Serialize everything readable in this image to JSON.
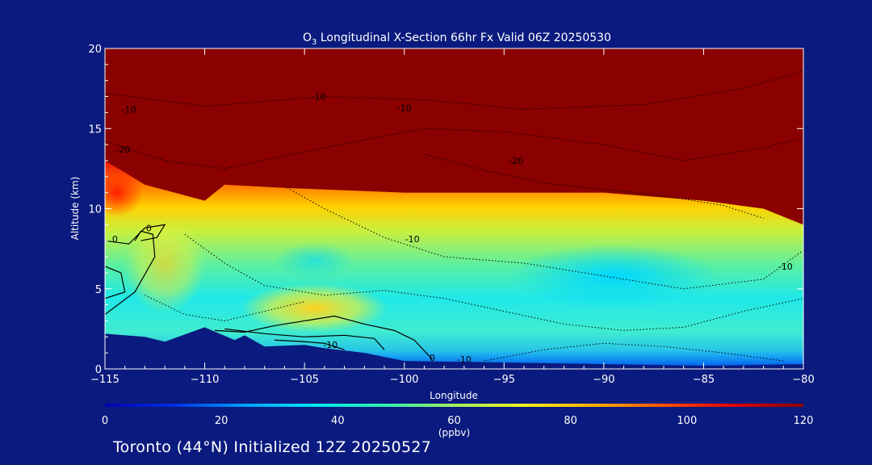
{
  "chart_data": {
    "type": "heatmap",
    "title_prefix": "O",
    "title_sub": "3",
    "title_rest": " Longitudinal X-Section 66hr  Fx Valid 06Z 20250530",
    "xlabel": "Longitude",
    "ylabel": "Altitude (km)",
    "xlim": [
      -115,
      -80
    ],
    "ylim": [
      0,
      20
    ],
    "x_ticks": [
      -115,
      -110,
      -105,
      -100,
      -95,
      -90,
      -85,
      -80
    ],
    "x_tick_labels": [
      "−115",
      "−110",
      "−105",
      "−100",
      "−95",
      "−90",
      "−85",
      "−80"
    ],
    "y_ticks": [
      0,
      5,
      10,
      15,
      20
    ],
    "y_tick_labels": [
      "0",
      "5",
      "10",
      "15",
      "20"
    ],
    "tropopause_km": [
      [
        -115,
        13.0
      ],
      [
        -113,
        11.5
      ],
      [
        -110,
        10.5
      ],
      [
        -109,
        11.5
      ],
      [
        -106,
        11.3
      ],
      [
        -100,
        11.0
      ],
      [
        -95,
        11.0
      ],
      [
        -90,
        11.0
      ],
      [
        -85,
        10.5
      ],
      [
        -82,
        10.0
      ],
      [
        -80,
        9.0
      ]
    ],
    "terrain_km": [
      [
        -115,
        2.2
      ],
      [
        -113,
        2.0
      ],
      [
        -112,
        1.7
      ],
      [
        -110,
        2.6
      ],
      [
        -108.5,
        1.8
      ],
      [
        -108,
        2.1
      ],
      [
        -107,
        1.4
      ],
      [
        -105,
        1.5
      ],
      [
        -104,
        1.3
      ],
      [
        -102,
        1.0
      ],
      [
        -100,
        0.5
      ],
      [
        -95,
        0.4
      ],
      [
        -90,
        0.3
      ],
      [
        -85,
        0.2
      ],
      [
        -80,
        0.3
      ]
    ],
    "contour_labels": [
      {
        "text": "-10",
        "lon": -113.8,
        "alt": 16.0
      },
      {
        "text": "-20",
        "lon": -114.1,
        "alt": 13.5
      },
      {
        "text": "-10",
        "lon": -104.3,
        "alt": 16.8
      },
      {
        "text": "-10",
        "lon": -100.0,
        "alt": 16.1
      },
      {
        "text": "-20",
        "lon": -94.4,
        "alt": 12.8
      },
      {
        "text": "-10",
        "lon": -99.6,
        "alt": 7.9
      },
      {
        "text": "-10",
        "lon": -80.9,
        "alt": 6.2
      },
      {
        "text": "-10",
        "lon": -97.0,
        "alt": 0.4
      },
      {
        "text": "0",
        "lon": -114.5,
        "alt": 7.9
      },
      {
        "text": "0",
        "lon": -112.8,
        "alt": 8.6
      },
      {
        "text": "-10",
        "lon": -103.7,
        "alt": 1.3
      },
      {
        "text": "0",
        "lon": -98.6,
        "alt": 0.5
      }
    ],
    "colorbar": {
      "min": 0,
      "max": 120,
      "ticks": [
        "0",
        "20",
        "40",
        "60",
        "80",
        "100",
        "120"
      ],
      "unit": "(ppbv)",
      "colors": [
        "#0000b0",
        "#0030e0",
        "#00a0ff",
        "#00e8f0",
        "#30f0b0",
        "#a0f060",
        "#f0f020",
        "#ffb000",
        "#ff5000",
        "#e00000",
        "#8b0000"
      ]
    }
  },
  "footer": "Toronto (44°N) Initialized 12Z 20250527"
}
